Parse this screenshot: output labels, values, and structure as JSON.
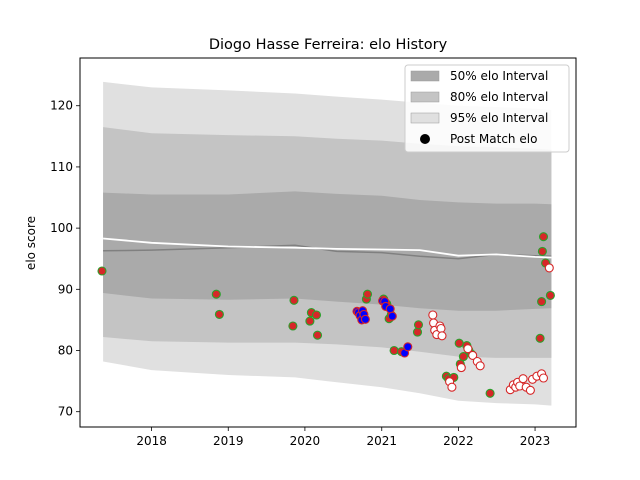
{
  "chart_data": {
    "type": "scatter",
    "title": "Diogo Hasse Ferreira: elo History",
    "xlabel": "",
    "ylabel": "elo score",
    "xlim": [
      "2017-01-25",
      "2023-07-15"
    ],
    "ylim": [
      67.5,
      127.8
    ],
    "x_ticks": [
      "2018",
      "2019",
      "2020",
      "2021",
      "2022",
      "2023"
    ],
    "y_ticks": [
      "70",
      "80",
      "90",
      "100",
      "110",
      "120"
    ],
    "legend_position": "top-right",
    "grid": false,
    "legend": [
      {
        "label": "50% elo Interval",
        "kind": "band",
        "color": "#aaaaaa"
      },
      {
        "label": "80% elo Interval",
        "kind": "band",
        "color": "#c4c4c4"
      },
      {
        "label": "95% elo Interval",
        "kind": "band",
        "color": "#e0e0e0"
      },
      {
        "label": "Post Match elo",
        "kind": "marker",
        "color": "#000000"
      }
    ],
    "bands": {
      "x": [
        "2017-05-15",
        "2018-01-01",
        "2019-01-01",
        "2019-11-15",
        "2020-06-01",
        "2021-01-01",
        "2021-07-01",
        "2022-01-01",
        "2022-07-01",
        "2023-01-01",
        "2023-03-20"
      ],
      "p95_upper": [
        123.9,
        123.0,
        122.5,
        122.0,
        121.5,
        121.0,
        120.5,
        120.0,
        119.8,
        119.5,
        119.3
      ],
      "p80_upper": [
        116.5,
        115.5,
        115.2,
        115.0,
        114.6,
        114.3,
        113.8,
        113.4,
        113.2,
        113.0,
        112.8
      ],
      "p50_upper": [
        105.8,
        105.5,
        105.5,
        106.0,
        105.6,
        105.3,
        104.6,
        104.2,
        104.0,
        104.0,
        103.9
      ],
      "median": [
        96.3,
        96.4,
        96.8,
        97.2,
        96.2,
        96.0,
        95.4,
        95.0,
        95.7,
        95.5,
        95.4
      ],
      "p50_lower": [
        89.4,
        88.5,
        88.3,
        88.5,
        88.0,
        87.5,
        86.9,
        86.5,
        86.5,
        86.8,
        86.9
      ],
      "p80_lower": [
        82.2,
        81.5,
        81.3,
        81.3,
        81.0,
        80.5,
        79.8,
        79.0,
        78.8,
        78.8,
        78.8
      ],
      "p95_lower": [
        78.2,
        76.8,
        76.0,
        75.6,
        74.8,
        74.0,
        73.0,
        71.8,
        71.4,
        71.2,
        71.0
      ]
    },
    "elo_line": {
      "x": [
        "2017-05-15",
        "2018-01-01",
        "2019-01-01",
        "2019-11-15",
        "2020-06-01",
        "2021-01-01",
        "2021-07-01",
        "2022-01-01",
        "2022-07-01",
        "2023-01-01",
        "2023-03-20"
      ],
      "y": [
        98.3,
        97.6,
        97.0,
        96.8,
        96.6,
        96.5,
        96.4,
        95.5,
        95.7,
        95.3,
        95.2
      ]
    },
    "series": [
      {
        "style": "green-fill",
        "color": "#d62728",
        "edge": "#2ca02c",
        "points": [
          [
            "2017-05-10",
            93.0
          ],
          [
            "2018-11-05",
            89.2
          ],
          [
            "2018-11-20",
            85.9
          ],
          [
            "2019-11-10",
            88.2
          ],
          [
            "2019-11-05",
            84.0
          ],
          [
            "2020-01-25",
            84.8
          ],
          [
            "2020-02-01",
            86.2
          ],
          [
            "2020-02-25",
            85.8
          ],
          [
            "2020-03-01",
            82.5
          ],
          [
            "2020-09-10",
            86.3
          ],
          [
            "2020-09-25",
            85.5
          ],
          [
            "2020-10-20",
            88.4
          ],
          [
            "2020-10-25",
            89.2
          ],
          [
            "2021-01-10",
            88.4
          ],
          [
            "2021-01-25",
            87.6
          ],
          [
            "2021-02-05",
            85.2
          ],
          [
            "2021-02-15",
            85.8
          ],
          [
            "2021-03-01",
            80.0
          ],
          [
            "2021-04-05",
            79.8
          ],
          [
            "2021-06-20",
            83.0
          ],
          [
            "2021-06-25",
            84.2
          ],
          [
            "2021-11-05",
            75.8
          ],
          [
            "2021-11-15",
            75.4
          ],
          [
            "2021-12-10",
            75.6
          ],
          [
            "2022-01-05",
            81.2
          ],
          [
            "2022-01-25",
            79.0
          ],
          [
            "2022-01-10",
            77.8
          ],
          [
            "2022-02-10",
            80.8
          ],
          [
            "2022-02-20",
            80.0
          ],
          [
            "2022-03-05",
            79.4
          ],
          [
            "2022-06-01",
            73.0
          ],
          [
            "2023-01-25",
            82.0
          ],
          [
            "2023-02-01",
            88.0
          ],
          [
            "2023-02-05",
            96.2
          ],
          [
            "2023-02-10",
            98.6
          ],
          [
            "2023-02-20",
            94.3
          ],
          [
            "2023-03-15",
            89.0
          ]
        ]
      },
      {
        "style": "blue-fill",
        "color": "#0000ff",
        "edge": "#d62728",
        "points": [
          [
            "2020-09-05",
            86.4
          ],
          [
            "2020-09-12",
            86.2
          ],
          [
            "2020-09-20",
            85.7
          ],
          [
            "2020-09-28",
            85.0
          ],
          [
            "2020-10-02",
            86.5
          ],
          [
            "2020-10-08",
            85.9
          ],
          [
            "2020-10-15",
            85.1
          ],
          [
            "2021-01-05",
            88.1
          ],
          [
            "2021-01-15",
            88.0
          ],
          [
            "2021-01-20",
            87.2
          ],
          [
            "2021-02-10",
            86.8
          ],
          [
            "2021-02-20",
            85.6
          ],
          [
            "2021-04-20",
            79.6
          ],
          [
            "2021-05-05",
            80.6
          ]
        ]
      },
      {
        "style": "white-fill",
        "color": "#ffffff",
        "edge": "#d62728",
        "points": [
          [
            "2021-09-01",
            85.8
          ],
          [
            "2021-09-05",
            84.5
          ],
          [
            "2021-09-10",
            83.3
          ],
          [
            "2021-09-20",
            82.6
          ],
          [
            "2021-10-05",
            84.0
          ],
          [
            "2021-10-10",
            83.6
          ],
          [
            "2021-10-15",
            82.4
          ],
          [
            "2021-11-20",
            74.9
          ],
          [
            "2021-12-01",
            74.0
          ],
          [
            "2022-01-15",
            77.2
          ],
          [
            "2022-02-15",
            80.3
          ],
          [
            "2022-03-10",
            79.2
          ],
          [
            "2022-04-01",
            78.2
          ],
          [
            "2022-04-15",
            77.5
          ],
          [
            "2022-09-05",
            73.6
          ],
          [
            "2022-09-20",
            74.4
          ],
          [
            "2022-10-01",
            74.0
          ],
          [
            "2022-10-10",
            74.8
          ],
          [
            "2022-10-20",
            74.2
          ],
          [
            "2022-11-05",
            75.4
          ],
          [
            "2022-11-20",
            74.0
          ],
          [
            "2022-12-10",
            73.5
          ],
          [
            "2022-12-20",
            75.3
          ],
          [
            "2023-01-10",
            75.8
          ],
          [
            "2023-02-01",
            76.2
          ],
          [
            "2023-02-10",
            75.5
          ],
          [
            "2023-03-10",
            93.5
          ]
        ]
      }
    ]
  }
}
